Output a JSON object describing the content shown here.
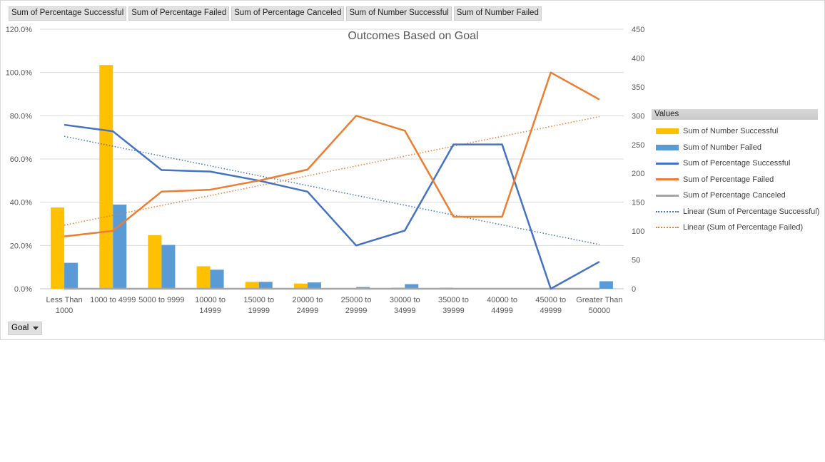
{
  "field_buttons": [
    "Sum of Percentage Successful",
    "Sum of Percentage Failed",
    "Sum of Percentage Canceled",
    "Sum of Number Successful",
    "Sum of Number Failed"
  ],
  "axis_field_button": "Goal",
  "legend_title": "Values",
  "colors": {
    "successful_bar": "#FFC000",
    "failed_bar": "#5B9BD5",
    "pct_successful": "#4472C4",
    "pct_failed": "#ED7D31",
    "pct_canceled": "#A5A5A5"
  },
  "chart_data": {
    "type": "combo-bar-line",
    "title": "Outcomes Based on Goal",
    "categories": [
      [
        "Less Than",
        "1000"
      ],
      [
        "1000 to 4999"
      ],
      [
        "5000 to 9999"
      ],
      [
        "10000 to",
        "14999"
      ],
      [
        "15000 to",
        "19999"
      ],
      [
        "20000 to",
        "24999"
      ],
      [
        "25000 to",
        "29999"
      ],
      [
        "30000 to",
        "34999"
      ],
      [
        "35000 to",
        "39999"
      ],
      [
        "40000 to",
        "44999"
      ],
      [
        "45000 to",
        "49999"
      ],
      [
        "Greater Than",
        "50000"
      ]
    ],
    "primary_axis": {
      "ylim": [
        0,
        120
      ],
      "ticks": [
        "0.0%",
        "20.0%",
        "40.0%",
        "60.0%",
        "80.0%",
        "100.0%",
        "120.0%"
      ]
    },
    "secondary_axis": {
      "ylim": [
        0,
        450
      ],
      "ticks": [
        "0",
        "50",
        "100",
        "150",
        "200",
        "250",
        "300",
        "350",
        "400",
        "450"
      ]
    },
    "bar_series": [
      {
        "name": "Sum of Number Successful",
        "axis": "secondary",
        "values": [
          141,
          388,
          93,
          39,
          12,
          9,
          1,
          2,
          2,
          0,
          0,
          0
        ]
      },
      {
        "name": "Sum of Number Failed",
        "axis": "secondary",
        "values": [
          45,
          146,
          76,
          33,
          12,
          11,
          3,
          8,
          0,
          0,
          0,
          13
        ]
      }
    ],
    "line_series": [
      {
        "name": "Sum of Percentage Successful",
        "axis": "primary",
        "values": [
          75.8,
          72.8,
          54.9,
          54.2,
          50.0,
          44.9,
          20.0,
          26.9,
          66.7,
          66.7,
          0.0,
          12.5
        ]
      },
      {
        "name": "Sum of Percentage Failed",
        "axis": "primary",
        "values": [
          24.2,
          26.8,
          44.9,
          45.8,
          50.0,
          55.1,
          80.0,
          73.1,
          33.3,
          33.3,
          100.0,
          87.5
        ]
      },
      {
        "name": "Sum of Percentage Canceled",
        "axis": "primary",
        "values": [
          0,
          0,
          0,
          0,
          0,
          0,
          0,
          0,
          0,
          0,
          0,
          0
        ]
      }
    ],
    "trendlines": [
      {
        "name": "Linear (Sum of Percentage Successful)",
        "of": "Sum of Percentage Successful",
        "type": "linear"
      },
      {
        "name": "Linear (Sum of Percentage Failed)",
        "of": "Sum of Percentage Failed",
        "type": "linear"
      }
    ],
    "grid": true,
    "legend_position": "right"
  }
}
